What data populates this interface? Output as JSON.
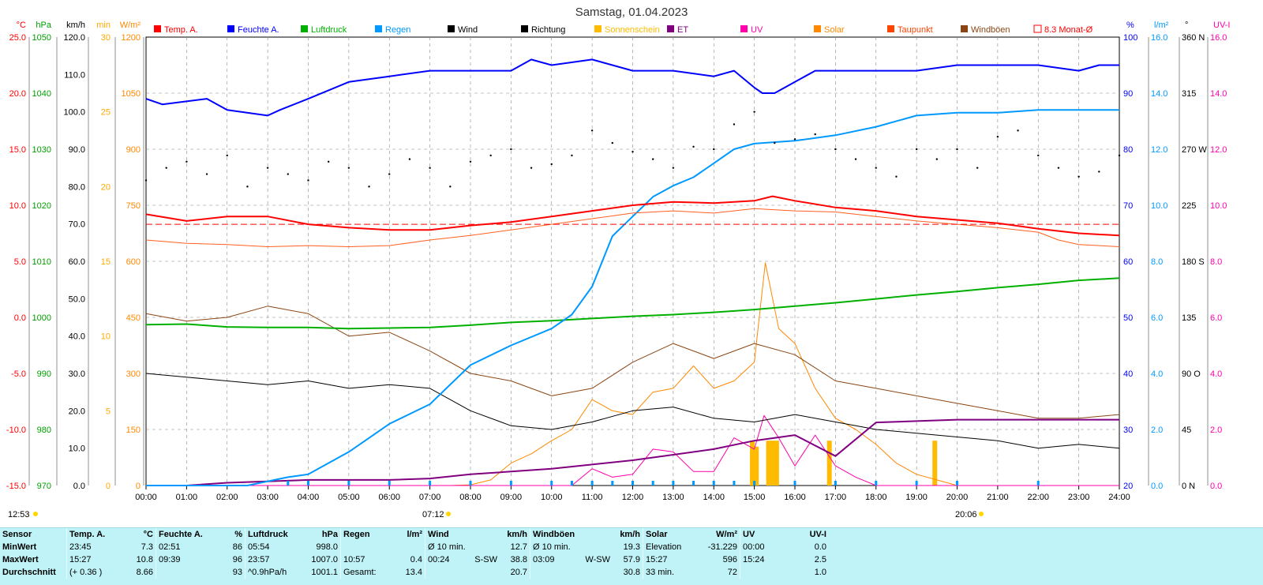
{
  "title": "Samstag, 01.04.2023",
  "legend": [
    {
      "label": "Temp. A.",
      "color": "#ff0000"
    },
    {
      "label": "Feuchte A.",
      "color": "#0000ff"
    },
    {
      "label": "Luftdruck",
      "color": "#00b000"
    },
    {
      "label": "Regen",
      "color": "#0099ff"
    },
    {
      "label": "Wind",
      "color": "#000000"
    },
    {
      "label": "Richtung",
      "color": "#000000"
    },
    {
      "label": "Sonnenschein",
      "color": "#ffbb00"
    },
    {
      "label": "ET",
      "color": "#800080"
    },
    {
      "label": "UV",
      "color": "#ff00aa"
    },
    {
      "label": "Solar",
      "color": "#ff8800"
    },
    {
      "label": "Taupunkt",
      "color": "#ff4400"
    },
    {
      "label": "Windböen",
      "color": "#8b4513"
    },
    {
      "label": "8.3 Monat-Ø",
      "color": "#ff0000"
    }
  ],
  "axes_left": [
    {
      "unit": "°C",
      "color": "#ff0000",
      "ticks": [
        "25.0",
        "20.0",
        "15.0",
        "10.0",
        "5.0",
        "0.0",
        "-5.0",
        "-10.0",
        "-15.0"
      ]
    },
    {
      "unit": "hPa",
      "color": "#00a000",
      "ticks": [
        "1050",
        "1040",
        "1030",
        "1020",
        "1010",
        "1000",
        "990",
        "980",
        "970"
      ]
    },
    {
      "unit": "km/h",
      "color": "#000000",
      "ticks": [
        "120.0",
        "110.0",
        "100.0",
        "90.0",
        "80.0",
        "70.0",
        "60.0",
        "50.0",
        "40.0",
        "30.0",
        "20.0",
        "10.0",
        "0.0"
      ]
    },
    {
      "unit": "min",
      "color": "#ffaa00",
      "ticks": [
        "30",
        "25",
        "20",
        "15",
        "10",
        "5",
        "0"
      ]
    },
    {
      "unit": "W/m²",
      "color": "#ff8800",
      "ticks": [
        "1200",
        "1050",
        "900",
        "750",
        "600",
        "450",
        "300",
        "150",
        "0"
      ]
    }
  ],
  "axes_right": [
    {
      "unit": "%",
      "color": "#0000ff",
      "ticks": [
        "100",
        "90",
        "80",
        "70",
        "60",
        "50",
        "40",
        "30",
        "20"
      ]
    },
    {
      "unit": "l/m²",
      "color": "#0099ff",
      "ticks": [
        "16.0",
        "14.0",
        "12.0",
        "10.0",
        "8.0",
        "6.0",
        "4.0",
        "2.0",
        "0.0"
      ]
    },
    {
      "unit": "°",
      "color": "#000000",
      "ticks": [
        "360 N",
        "315",
        "270 W",
        "225",
        "180 S",
        "135",
        "90 O",
        "45",
        "0 N"
      ]
    },
    {
      "unit": "UV-I",
      "color": "#ff00aa",
      "ticks": [
        "16.0",
        "14.0",
        "12.0",
        "10.0",
        "8.0",
        "6.0",
        "4.0",
        "2.0",
        "0.0"
      ]
    }
  ],
  "x_ticks": [
    "00:00",
    "01:00",
    "02:00",
    "03:00",
    "04:00",
    "05:00",
    "06:00",
    "07:00",
    "08:00",
    "09:00",
    "10:00",
    "11:00",
    "12:00",
    "13:00",
    "14:00",
    "15:00",
    "16:00",
    "17:00",
    "18:00",
    "19:00",
    "20:00",
    "21:00",
    "22:00",
    "23:00",
    "24:00"
  ],
  "sun": {
    "daylength": "12:53",
    "sunrise": "07:12",
    "sunset": "20:06"
  },
  "chart_data": {
    "type": "line",
    "title": "Samstag, 01.04.2023",
    "x_unit": "hour of day",
    "xlim": [
      0,
      24
    ],
    "grid": true,
    "legend_position": "top",
    "series": [
      {
        "name": "Temp. A.",
        "axis": "°C",
        "ylim": [
          -15,
          25
        ],
        "x": [
          0,
          1,
          2,
          3,
          4,
          5,
          6,
          7,
          8,
          9,
          10,
          11,
          12,
          13,
          14,
          15,
          15.45,
          16,
          17,
          18,
          19,
          20,
          21,
          22,
          23,
          24
        ],
        "y": [
          9.2,
          8.6,
          9.0,
          9.0,
          8.3,
          8.0,
          7.8,
          7.8,
          8.2,
          8.5,
          9.0,
          9.5,
          10.0,
          10.3,
          10.2,
          10.4,
          10.8,
          10.4,
          9.8,
          9.5,
          9.0,
          8.7,
          8.4,
          7.9,
          7.5,
          7.3
        ]
      },
      {
        "name": "Taupunkt",
        "axis": "°C",
        "ylim": [
          -15,
          25
        ],
        "x": [
          0,
          1,
          2,
          3,
          4,
          5,
          6,
          7,
          8,
          9,
          10,
          11,
          12,
          13,
          14,
          15,
          16,
          17,
          18,
          19,
          20,
          21,
          22,
          22.5,
          23,
          24
        ],
        "y": [
          6.9,
          6.6,
          6.5,
          6.3,
          6.4,
          6.3,
          6.4,
          6.9,
          7.3,
          7.8,
          8.3,
          8.8,
          9.3,
          9.5,
          9.3,
          9.7,
          9.5,
          9.4,
          9.0,
          8.6,
          8.3,
          8.0,
          7.6,
          6.9,
          6.5,
          6.3
        ]
      },
      {
        "name": "8.3 Monat-Ø",
        "axis": "°C",
        "ylim": [
          -15,
          25
        ],
        "x": [
          0,
          24
        ],
        "y": [
          8.3,
          8.3
        ]
      },
      {
        "name": "Feuchte A.",
        "axis": "%",
        "ylim": [
          20,
          100
        ],
        "x": [
          0,
          0.4,
          1.5,
          2,
          3,
          3.3,
          4,
          5,
          6,
          7,
          8,
          9,
          9.5,
          10,
          11,
          11.5,
          12,
          13,
          14,
          14.5,
          15,
          15.2,
          15.5,
          16,
          16.5,
          17,
          19,
          20,
          21,
          22,
          23,
          23.5,
          24
        ],
        "y": [
          89,
          88,
          89,
          87,
          86,
          87,
          89,
          92,
          93,
          94,
          94,
          94,
          96,
          95,
          96,
          95,
          94,
          94,
          93,
          94,
          91,
          90,
          90,
          92,
          94,
          94,
          94,
          95,
          95,
          95,
          94,
          95,
          95
        ]
      },
      {
        "name": "Luftdruck",
        "axis": "hPa",
        "ylim": [
          970,
          1050
        ],
        "x": [
          0,
          1,
          2,
          3,
          4,
          5,
          6,
          7,
          8,
          9,
          10,
          11,
          12,
          13,
          14,
          15,
          16,
          17,
          18,
          19,
          20,
          21,
          22,
          23,
          24
        ],
        "y": [
          998.7,
          998.8,
          998.3,
          998.2,
          998.2,
          998.0,
          998.1,
          998.2,
          998.6,
          999.1,
          999.4,
          999.8,
          1000.2,
          1000.5,
          1000.9,
          1001.4,
          1002.0,
          1002.6,
          1003.3,
          1004.0,
          1004.6,
          1005.3,
          1005.9,
          1006.6,
          1007.0
        ]
      },
      {
        "name": "Regen",
        "axis": "l/m²",
        "ylim": [
          0,
          16
        ],
        "x": [
          0,
          2.5,
          3.5,
          4,
          5,
          6,
          7,
          8,
          9,
          10,
          10.5,
          11,
          11.5,
          12,
          12.5,
          13,
          13.5,
          14,
          14.5,
          15,
          16,
          17,
          18,
          19,
          20,
          21,
          22,
          23,
          24
        ],
        "y": [
          0,
          0,
          0.3,
          0.4,
          1.2,
          2.2,
          2.9,
          4.3,
          5.0,
          5.6,
          6.1,
          7.1,
          8.9,
          9.6,
          10.3,
          10.7,
          11.0,
          11.5,
          12.0,
          12.2,
          12.3,
          12.5,
          12.8,
          13.2,
          13.3,
          13.3,
          13.4,
          13.4,
          13.4
        ]
      },
      {
        "name": "Wind",
        "axis": "km/h",
        "ylim": [
          0,
          120
        ],
        "x": [
          0,
          1,
          2,
          3,
          4,
          5,
          6,
          7,
          8,
          9,
          10,
          11,
          12,
          13,
          14,
          15,
          16,
          17,
          18,
          19,
          20,
          21,
          22,
          23,
          24
        ],
        "y": [
          30,
          29,
          28,
          27,
          28,
          26,
          27,
          26,
          20,
          16,
          15,
          17,
          20,
          21,
          18,
          17,
          19,
          17,
          15,
          14,
          13,
          12,
          10,
          11,
          10
        ]
      },
      {
        "name": "Windböen",
        "axis": "km/h",
        "ylim": [
          0,
          120
        ],
        "x": [
          0,
          1,
          2,
          3,
          4,
          5,
          6,
          7,
          8,
          9,
          10,
          11,
          12,
          13,
          14,
          15,
          16,
          17,
          18,
          19,
          20,
          21,
          22,
          23,
          24
        ],
        "y": [
          46,
          44,
          45,
          48,
          46,
          40,
          41,
          36,
          30,
          28,
          24,
          26,
          33,
          38,
          34,
          38,
          35,
          28,
          26,
          24,
          22,
          20,
          18,
          18,
          19
        ]
      },
      {
        "name": "Solar",
        "axis": "W/m²",
        "ylim": [
          0,
          1200
        ],
        "x": [
          0,
          7.5,
          8,
          8.5,
          9,
          9.5,
          10,
          10.5,
          11,
          11.5,
          12,
          12.5,
          13,
          13.5,
          14,
          14.5,
          15,
          15.27,
          15.6,
          16,
          16.5,
          17,
          17.5,
          18,
          18.5,
          19,
          19.5,
          20,
          24
        ],
        "y": [
          0,
          0,
          2,
          15,
          60,
          85,
          120,
          150,
          230,
          200,
          190,
          250,
          260,
          320,
          260,
          280,
          330,
          596,
          420,
          380,
          260,
          180,
          150,
          110,
          60,
          30,
          15,
          0,
          0
        ]
      },
      {
        "name": "UV",
        "axis": "UV-I",
        "ylim": [
          0,
          16
        ],
        "x": [
          0,
          10.5,
          11,
          11.5,
          12,
          12.5,
          13,
          13.5,
          14,
          14.5,
          15,
          15.24,
          15.6,
          16,
          16.5,
          17,
          17.5,
          18,
          24
        ],
        "y": [
          0,
          0,
          0.6,
          0.3,
          0.4,
          1.3,
          1.2,
          0.5,
          0.5,
          1.7,
          1.3,
          2.5,
          1.7,
          0.7,
          1.8,
          0.7,
          0.3,
          0,
          0
        ]
      },
      {
        "name": "ET",
        "axis": "UV-I",
        "ylim": [
          0,
          16
        ],
        "x": [
          0,
          1,
          2,
          3,
          4,
          5,
          6,
          7,
          8,
          9,
          10,
          11,
          12,
          13,
          14,
          15,
          16,
          17,
          18,
          19,
          20,
          21,
          22,
          23,
          24
        ],
        "y": [
          0,
          0,
          0.1,
          0.15,
          0.2,
          0.2,
          0.2,
          0.25,
          0.4,
          0.5,
          0.6,
          0.75,
          0.9,
          1.1,
          1.3,
          1.6,
          1.8,
          1.05,
          2.25,
          2.3,
          2.35,
          2.35,
          2.35,
          2.35,
          2.35
        ]
      },
      {
        "name": "Sonnenschein",
        "axis": "min",
        "ylim": [
          0,
          30
        ],
        "type": "bar",
        "x": [
          14.95,
          15.05,
          15.35,
          15.45,
          15.55,
          16.85,
          19.45
        ],
        "y": [
          3.0,
          2.6,
          3.0,
          3.0,
          3.0,
          3.0,
          3.0
        ]
      },
      {
        "name": "Richtung",
        "axis": "°",
        "ylim": [
          0,
          360
        ],
        "type": "scatter",
        "x": [
          0,
          0.5,
          1,
          1.5,
          2,
          2.5,
          3,
          3.5,
          4,
          4.5,
          5,
          5.5,
          6,
          6.5,
          7,
          7.5,
          8,
          8.5,
          9,
          9.5,
          10,
          10.5,
          11,
          11.5,
          12,
          12.5,
          13,
          13.5,
          14,
          14.5,
          15,
          15.5,
          16,
          16.5,
          17,
          17.5,
          18,
          18.5,
          19,
          19.5,
          20,
          20.5,
          21,
          21.5,
          22,
          22.5,
          23,
          23.5,
          24
        ],
        "y": [
          245,
          255,
          260,
          250,
          265,
          240,
          255,
          250,
          245,
          260,
          255,
          240,
          250,
          262,
          255,
          240,
          260,
          265,
          270,
          255,
          258,
          265,
          285,
          275,
          268,
          262,
          255,
          272,
          270,
          290,
          300,
          275,
          278,
          282,
          270,
          262,
          255,
          248,
          270,
          262,
          270,
          255,
          280,
          285,
          265,
          255,
          248,
          252,
          265
        ]
      }
    ]
  },
  "summary": {
    "header": {
      "sensor": "Sensor",
      "temp": "Temp. A.",
      "temp_unit": "°C",
      "hum": "Feuchte A.",
      "hum_unit": "%",
      "press": "Luftdruck",
      "press_unit": "hPa",
      "rain": "Regen",
      "rain_unit": "l/m²",
      "wind": "Wind",
      "wind_unit": "km/h",
      "gust": "Windböen",
      "gust_unit": "km/h",
      "solar": "Solar",
      "solar_unit": "W/m²",
      "uv": "UV",
      "uv_unit": "UV-I"
    },
    "rows": [
      {
        "label": "MinWert",
        "temp_t": "23:45",
        "temp_v": "7.3",
        "hum_t": "02:51",
        "hum_v": "86",
        "press_t": "05:54",
        "press_v": "998.0",
        "rain_t": "",
        "rain_v": "",
        "wind_t": "Ø 10 min.",
        "wind_d": "",
        "wind_v": "12.7",
        "gust_t": "Ø 10 min.",
        "gust_d": "",
        "gust_v": "19.3",
        "solar_t": "Elevation",
        "solar_v": "-31.229",
        "uv_t": "00:00",
        "uv_v": "0.0"
      },
      {
        "label": "MaxWert",
        "temp_t": "15:27",
        "temp_v": "10.8",
        "hum_t": "09:39",
        "hum_v": "96",
        "press_t": "23:57",
        "press_v": "1007.0",
        "rain_t": "10:57",
        "rain_v": "0.4",
        "wind_t": "00:24",
        "wind_d": "S-SW",
        "wind_v": "38.8",
        "gust_t": "03:09",
        "gust_d": "W-SW",
        "gust_v": "57.9",
        "solar_t": "15:27",
        "solar_v": "596",
        "uv_t": "15:24",
        "uv_v": "2.5"
      },
      {
        "label": "Durchschnitt",
        "temp_t": "(+ 0.36 )",
        "temp_v": "8.66",
        "hum_t": "",
        "hum_v": "93",
        "press_t": "^0.9hPa/h",
        "press_v": "1001.1",
        "rain_t": "Gesamt:",
        "rain_v": "13.4",
        "wind_t": "",
        "wind_d": "",
        "wind_v": "20.7",
        "gust_t": "",
        "gust_d": "",
        "gust_v": "30.8",
        "solar_t": "33 min.",
        "solar_v": "72",
        "uv_t": "",
        "uv_v": "1.0"
      }
    ]
  }
}
